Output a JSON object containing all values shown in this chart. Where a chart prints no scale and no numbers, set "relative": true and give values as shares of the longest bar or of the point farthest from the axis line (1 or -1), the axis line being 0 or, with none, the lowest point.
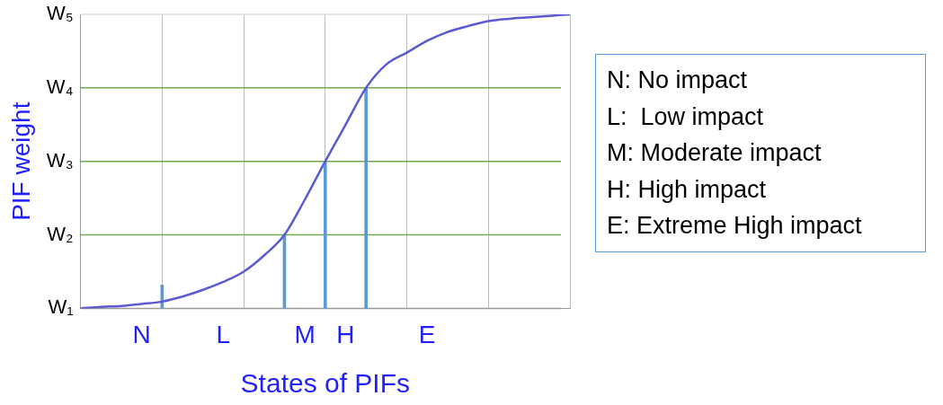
{
  "chart_data": {
    "type": "line",
    "xlabel": "States of PIFs",
    "ylabel": "PIF weight",
    "relative": true,
    "categories": [
      null,
      null,
      null,
      "N",
      null,
      null,
      null,
      "L",
      null,
      null,
      null,
      "M",
      null,
      "H",
      null,
      null,
      null,
      "E",
      null,
      null,
      null,
      null,
      null,
      null,
      null
    ],
    "grid": "x",
    "legend": false,
    "marker": "none",
    "line_style": "solid",
    "series": [
      {
        "color": "#5a5ad2",
        "values": [
          0,
          0.005,
          0.008,
          0.015,
          0.023,
          0.04,
          0.063,
          0.09,
          0.125,
          0.18,
          0.25,
          0.37,
          0.5,
          0.625,
          0.75,
          0.83,
          0.87,
          0.91,
          0.94,
          0.96,
          0.977,
          0.985,
          0.99,
          0.995,
          1
        ]
      },
      {
        "type": "bar",
        "color": "#5b9bd5",
        "values": [
          null,
          null,
          null,
          null,
          0.08,
          null,
          null,
          null,
          null,
          null,
          0.25,
          null,
          0.5,
          null,
          0.75,
          null,
          null,
          null,
          null,
          null,
          null,
          null,
          null,
          null,
          null
        ]
      }
    ],
    "ref_lines": [
      {
        "axis": "y",
        "value": 0,
        "label": "W₁",
        "color": "#999999"
      },
      {
        "axis": "y",
        "value": 0.25,
        "label": "W₂",
        "color": "#70ad47"
      },
      {
        "axis": "y",
        "value": 0.5,
        "label": "W₃",
        "color": "#70ad47"
      },
      {
        "axis": "y",
        "value": 0.75,
        "label": "W₄",
        "color": "#70ad47"
      },
      {
        "axis": "y",
        "value": 1,
        "label": "W₅",
        "color": "#dddddd"
      }
    ],
    "annotations": [
      "N: No impact",
      "L:  Low impact",
      "M: Moderate impact",
      "H: High impact",
      "E: Extreme High impact"
    ]
  }
}
